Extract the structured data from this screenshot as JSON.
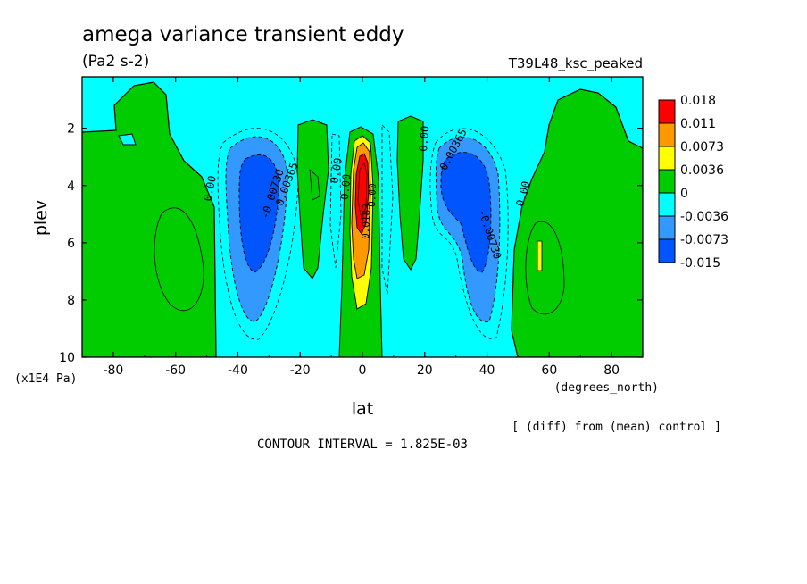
{
  "chart_data": {
    "type": "heatmap",
    "title": "amega variance transient eddy",
    "subtitle": "(Pa2 s-2)",
    "run_label": "T39L48_ksc_peaked",
    "xlabel": "lat",
    "xunits": "(degrees_north)",
    "ylabel": "plev",
    "yunits": "(x1E4 Pa)",
    "xlim": [
      -90,
      90
    ],
    "ylim": [
      10,
      0.2
    ],
    "x_ticks": [
      "-80",
      "-60",
      "-40",
      "-20",
      "0",
      "20",
      "40",
      "60",
      "80"
    ],
    "y_ticks": [
      "2",
      "4",
      "6",
      "8",
      "10"
    ],
    "note": "[ (diff) from (mean) control ]",
    "contour_interval": "CONTOUR INTERVAL = 1.825E-03",
    "colorbar": {
      "labels": [
        "0.018",
        "0.011",
        "0.0073",
        "0.0036",
        "0",
        "-0.0036",
        "-0.0073",
        "-0.015"
      ],
      "colors": [
        "#ff0000",
        "#ff9900",
        "#ffff00",
        "#00cc00",
        "#00ffff",
        "#3399ff",
        "#0055ff"
      ]
    },
    "background_color": "#00ffff",
    "contour_labels": [
      "0.00",
      "0.00",
      "0.00",
      "0.00",
      "0.00",
      "-0.00730",
      "-0.00365",
      "-0.00365",
      "-0.00730",
      "0.0183",
      "0.00"
    ]
  }
}
